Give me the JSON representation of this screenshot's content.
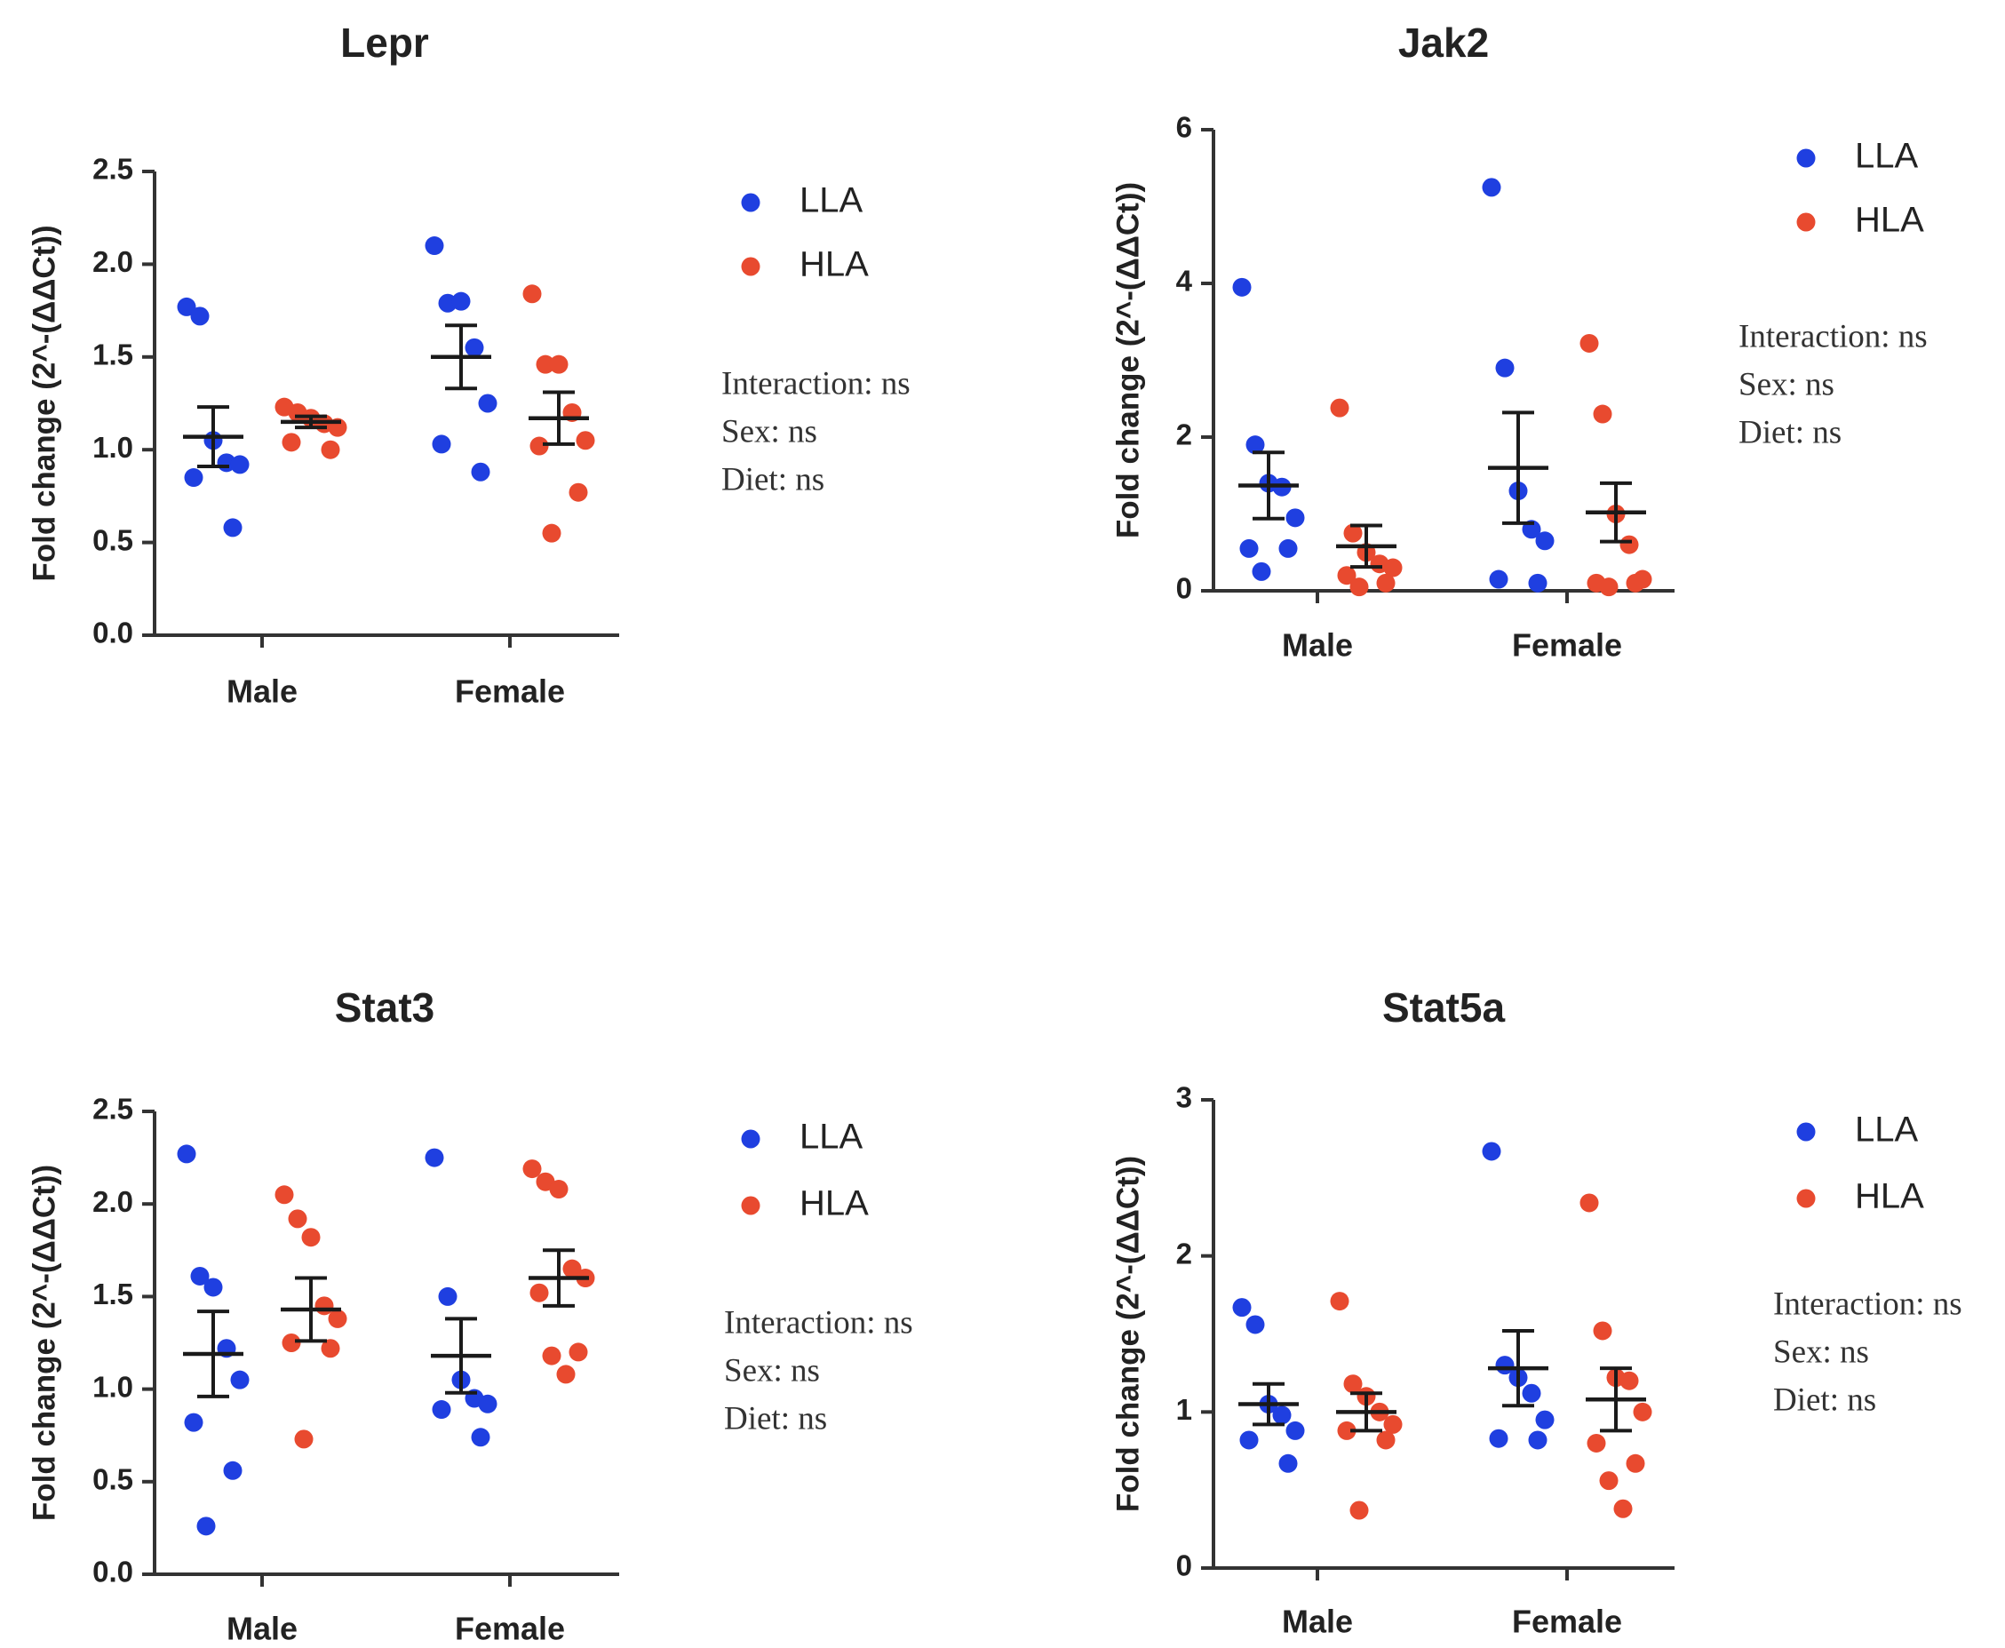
{
  "chart_data": [
    {
      "type": "scatter",
      "title": "Lepr",
      "ylabel": "Fold change (2^-(ΔΔCt))",
      "xlabel": "",
      "categories": [
        "Male",
        "Female"
      ],
      "ylim": [
        0,
        2.5
      ],
      "yticks": [
        "0.0",
        "0.5",
        "1.0",
        "1.5",
        "2.0",
        "2.5"
      ],
      "series": [
        {
          "name": "LLA",
          "color": "#1f3fe0",
          "points": [
            [
              1.77,
              1.72,
              1.05,
              0.93,
              0.92,
              0.85,
              0.58
            ],
            [
              2.1,
              1.79,
              1.8,
              1.55,
              1.25,
              1.03,
              0.88
            ]
          ],
          "mean": [
            1.07,
            1.5
          ],
          "sem": [
            0.16,
            0.17
          ]
        },
        {
          "name": "HLA",
          "color": "#e84a2f",
          "points": [
            [
              1.23,
              1.2,
              1.17,
              1.14,
              1.12,
              1.04,
              1.0
            ],
            [
              1.84,
              1.46,
              1.46,
              1.2,
              1.05,
              1.02,
              0.77,
              0.55
            ]
          ],
          "mean": [
            1.15,
            1.17
          ],
          "sem": [
            0.03,
            0.14
          ]
        }
      ],
      "legend": [
        "LLA",
        "HLA"
      ],
      "stats": [
        "Interaction: ns",
        "Sex: ns",
        "Diet: ns"
      ]
    },
    {
      "type": "scatter",
      "title": "Jak2",
      "ylabel": "Fold change (2^-(ΔΔCt))",
      "xlabel": "",
      "categories": [
        "Male",
        "Female"
      ],
      "ylim": [
        0,
        6
      ],
      "yticks": [
        "0",
        "2",
        "4",
        "6"
      ],
      "series": [
        {
          "name": "LLA",
          "color": "#1f3fe0",
          "points": [
            [
              3.95,
              1.9,
              1.4,
              1.35,
              0.95,
              0.55,
              0.55,
              0.25
            ],
            [
              5.25,
              2.9,
              1.3,
              0.8,
              0.65,
              0.15,
              0.1
            ]
          ],
          "mean": [
            1.37,
            1.6
          ],
          "sem": [
            0.43,
            0.72
          ]
        },
        {
          "name": "HLA",
          "color": "#e84a2f",
          "points": [
            [
              2.38,
              0.75,
              0.5,
              0.35,
              0.3,
              0.2,
              0.1,
              0.05
            ],
            [
              3.22,
              2.3,
              1.0,
              0.6,
              0.15,
              0.1,
              0.1,
              0.05
            ]
          ],
          "mean": [
            0.58,
            1.02
          ],
          "sem": [
            0.27,
            0.38
          ]
        }
      ],
      "legend": [
        "LLA",
        "HLA"
      ],
      "stats": [
        "Interaction: ns",
        "Sex: ns",
        "Diet: ns"
      ]
    },
    {
      "type": "scatter",
      "title": "Stat3",
      "ylabel": "Fold change (2^-(ΔΔCt))",
      "xlabel": "",
      "categories": [
        "Male",
        "Female"
      ],
      "ylim": [
        0,
        2.5
      ],
      "yticks": [
        "0.0",
        "0.5",
        "1.0",
        "1.5",
        "2.0",
        "2.5"
      ],
      "series": [
        {
          "name": "LLA",
          "color": "#1f3fe0",
          "points": [
            [
              2.27,
              1.61,
              1.55,
              1.22,
              1.05,
              0.82,
              0.56,
              0.26
            ],
            [
              2.25,
              1.5,
              1.05,
              0.95,
              0.92,
              0.89,
              0.74
            ]
          ],
          "mean": [
            1.19,
            1.18
          ],
          "sem": [
            0.23,
            0.2
          ]
        },
        {
          "name": "HLA",
          "color": "#e84a2f",
          "points": [
            [
              2.05,
              1.92,
              1.82,
              1.45,
              1.38,
              1.25,
              1.22,
              0.73
            ],
            [
              2.19,
              2.12,
              2.08,
              1.65,
              1.6,
              1.52,
              1.2,
              1.18,
              1.08
            ]
          ],
          "mean": [
            1.43,
            1.6
          ],
          "sem": [
            0.17,
            0.15
          ]
        }
      ],
      "legend": [
        "LLA",
        "HLA"
      ],
      "stats": [
        "Interaction: ns",
        "Sex: ns",
        "Diet: ns"
      ]
    },
    {
      "type": "scatter",
      "title": "Stat5a",
      "ylabel": "Fold change (2^-(ΔΔCt))",
      "xlabel": "",
      "categories": [
        "Male",
        "Female"
      ],
      "ylim": [
        0,
        3
      ],
      "yticks": [
        "0",
        "1",
        "2",
        "3"
      ],
      "series": [
        {
          "name": "LLA",
          "color": "#1f3fe0",
          "points": [
            [
              1.67,
              1.56,
              1.05,
              0.98,
              0.88,
              0.82,
              0.67
            ],
            [
              2.67,
              1.3,
              1.22,
              1.12,
              0.95,
              0.83,
              0.82
            ]
          ],
          "mean": [
            1.05,
            1.28
          ],
          "sem": [
            0.13,
            0.24
          ]
        },
        {
          "name": "HLA",
          "color": "#e84a2f",
          "points": [
            [
              1.71,
              1.18,
              1.1,
              1.0,
              0.92,
              0.88,
              0.82,
              0.37
            ],
            [
              2.34,
              1.52,
              1.22,
              1.2,
              1.0,
              0.8,
              0.67,
              0.56,
              0.38
            ]
          ],
          "mean": [
            1.0,
            1.08
          ],
          "sem": [
            0.12,
            0.2
          ]
        }
      ],
      "legend": [
        "LLA",
        "HLA"
      ],
      "stats": [
        "Interaction: ns",
        "Sex: ns",
        "Diet: ns"
      ]
    }
  ]
}
